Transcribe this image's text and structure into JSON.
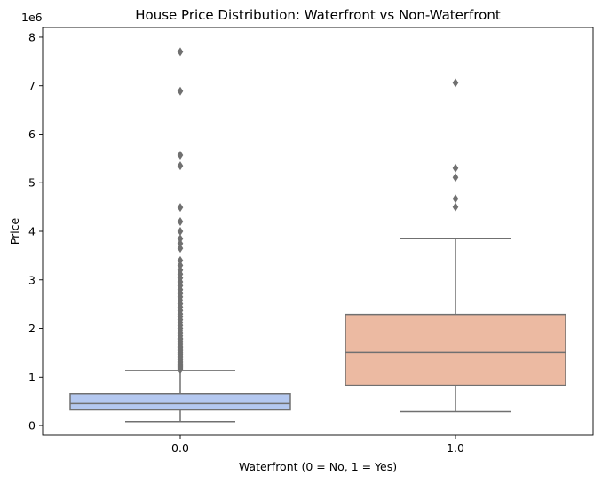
{
  "chart_data": {
    "type": "box",
    "title": "House Price Distribution: Waterfront vs Non-Waterfront",
    "xlabel": "Waterfront (0 = No, 1 = Yes)",
    "ylabel": "Price",
    "y_offset_label": "1e6",
    "y_scale": 1000000,
    "ylim": [
      -200000,
      8200000
    ],
    "y_ticks": [
      0,
      1000000,
      2000000,
      3000000,
      4000000,
      5000000,
      6000000,
      7000000,
      8000000
    ],
    "y_tick_labels": [
      "0",
      "1",
      "2",
      "3",
      "4",
      "5",
      "6",
      "7",
      "8"
    ],
    "grid": false,
    "categories": [
      "0.0",
      "1.0"
    ],
    "boxes": [
      {
        "category": "0.0",
        "color": "#b4c8f0",
        "whisker_low": 78000,
        "q1": 320000,
        "median": 450000,
        "q3": 645000,
        "whisker_high": 1130000,
        "outliers": [
          1150000,
          1170000,
          1190000,
          1210000,
          1230000,
          1250000,
          1280000,
          1300000,
          1330000,
          1360000,
          1390000,
          1420000,
          1450000,
          1480000,
          1510000,
          1540000,
          1570000,
          1600000,
          1640000,
          1680000,
          1720000,
          1760000,
          1800000,
          1850000,
          1900000,
          1950000,
          2000000,
          2060000,
          2120000,
          2180000,
          2240000,
          2300000,
          2370000,
          2440000,
          2510000,
          2580000,
          2650000,
          2720000,
          2800000,
          2880000,
          2960000,
          3040000,
          3120000,
          3200000,
          3300000,
          3400000,
          3650000,
          3750000,
          3850000,
          4000000,
          4200000,
          4490000,
          5350000,
          5570000,
          6890000,
          7700000
        ]
      },
      {
        "category": "1.0",
        "color": "#ecbaa2",
        "whisker_low": 285000,
        "q1": 830000,
        "median": 1510000,
        "q3": 2290000,
        "whisker_high": 3850000,
        "outliers": [
          4500000,
          4670000,
          5110000,
          5300000,
          7060000
        ]
      }
    ]
  }
}
